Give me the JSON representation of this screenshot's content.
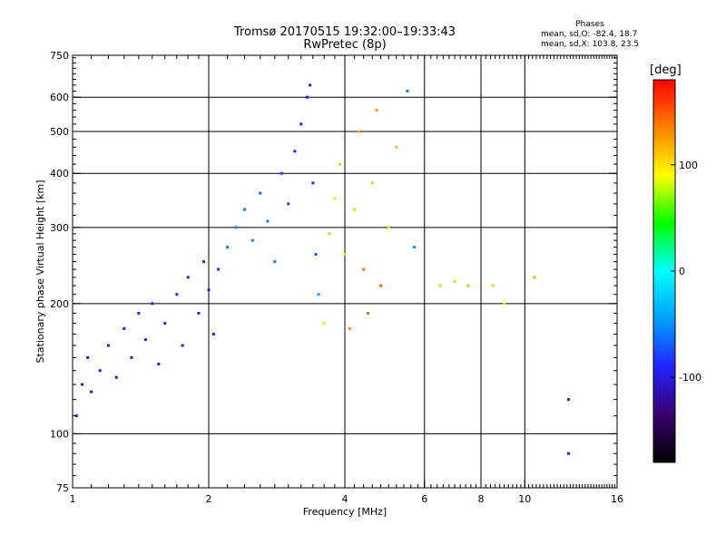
{
  "title": "Tromsø 20170515 19:32:00–19:33:43",
  "subtitle": "RwPretec (8p)",
  "info": {
    "heading": "Phases",
    "line1": "mean, sd,O: -82.4, 18.7",
    "line2": "mean, sd,X: 103.8, 23.5"
  },
  "colorbar": {
    "label": "[deg]",
    "range": [
      -180,
      180
    ],
    "ticks": [
      100,
      0,
      -100
    ],
    "colors": [
      "#000000",
      "#3a006e",
      "#2222ff",
      "#00a0ff",
      "#00ffff",
      "#00ff00",
      "#ffff00",
      "#ff8000",
      "#ff0000"
    ]
  },
  "chart_data": {
    "type": "scatter",
    "xlabel": "Frequency [MHz]",
    "ylabel": "Stationary phase Virtual Height [km]",
    "x_scale": "log",
    "y_scale": "log",
    "xlim": [
      1,
      16
    ],
    "ylim": [
      75,
      750
    ],
    "xticks": [
      1,
      2,
      4,
      6,
      8,
      10,
      16
    ],
    "yticks": [
      75,
      100,
      200,
      300,
      400,
      500,
      600,
      750
    ],
    "x_gridlines": [
      2,
      4,
      6,
      8,
      10
    ],
    "y_gridlines": [
      100,
      200,
      300,
      400,
      500,
      600
    ],
    "grid": true,
    "color_variable": "phase [deg]",
    "series": [
      {
        "points": [
          [
            1.02,
            110,
            -95
          ],
          [
            1.05,
            130,
            -100
          ],
          [
            1.08,
            150,
            -98
          ],
          [
            1.1,
            125,
            -105
          ],
          [
            1.15,
            140,
            -100
          ],
          [
            1.2,
            160,
            -95
          ],
          [
            1.25,
            135,
            -102
          ],
          [
            1.3,
            175,
            -95
          ],
          [
            1.35,
            150,
            -100
          ],
          [
            1.4,
            190,
            -92
          ],
          [
            1.45,
            165,
            -98
          ],
          [
            1.5,
            200,
            -90
          ],
          [
            1.55,
            145,
            -100
          ],
          [
            1.6,
            180,
            -94
          ],
          [
            1.7,
            210,
            -88
          ],
          [
            1.75,
            160,
            -96
          ],
          [
            1.8,
            230,
            -90
          ],
          [
            1.9,
            190,
            -92
          ],
          [
            1.95,
            250,
            -88
          ],
          [
            2.0,
            215,
            -90
          ],
          [
            2.05,
            170,
            -95
          ],
          [
            2.1,
            240,
            -85
          ],
          [
            2.2,
            270,
            -60
          ],
          [
            2.3,
            300,
            -55
          ],
          [
            2.4,
            330,
            -58
          ],
          [
            2.5,
            280,
            -60
          ],
          [
            2.6,
            360,
            -70
          ],
          [
            2.7,
            310,
            -60
          ],
          [
            2.8,
            250,
            -60
          ],
          [
            2.9,
            400,
            -80
          ],
          [
            3.0,
            340,
            -85
          ],
          [
            3.1,
            450,
            -90
          ],
          [
            3.2,
            520,
            -90
          ],
          [
            3.3,
            600,
            -95
          ],
          [
            3.35,
            640,
            -90
          ],
          [
            3.4,
            380,
            -85
          ],
          [
            3.45,
            260,
            -70
          ],
          [
            3.5,
            210,
            -40
          ],
          [
            3.6,
            180,
            100
          ],
          [
            3.7,
            290,
            110
          ],
          [
            3.8,
            350,
            100
          ],
          [
            3.9,
            420,
            110
          ],
          [
            4.0,
            260,
            105
          ],
          [
            4.1,
            175,
            130
          ],
          [
            4.2,
            330,
            110
          ],
          [
            4.3,
            500,
            120
          ],
          [
            4.4,
            240,
            140
          ],
          [
            4.5,
            190,
            145
          ],
          [
            4.6,
            380,
            110
          ],
          [
            4.7,
            560,
            130
          ],
          [
            4.8,
            220,
            145
          ],
          [
            5.0,
            300,
            100
          ],
          [
            5.2,
            460,
            115
          ],
          [
            5.5,
            620,
            -60
          ],
          [
            5.7,
            270,
            -55
          ],
          [
            6.5,
            220,
            105
          ],
          [
            7.0,
            225,
            110
          ],
          [
            7.5,
            220,
            115
          ],
          [
            8.5,
            220,
            110
          ],
          [
            9.0,
            200,
            100
          ],
          [
            10.5,
            230,
            120
          ],
          [
            12.5,
            120,
            -100
          ],
          [
            12.5,
            90,
            -95
          ]
        ]
      }
    ]
  }
}
